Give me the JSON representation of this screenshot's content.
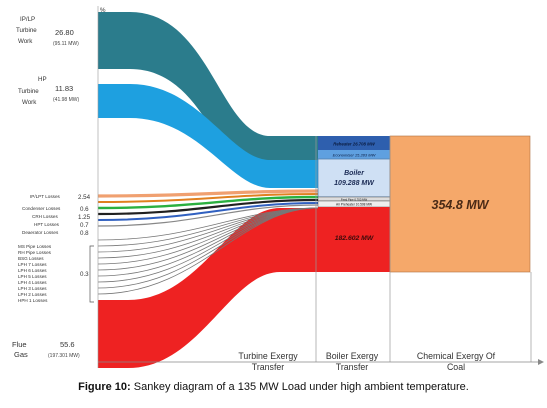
{
  "top_marker": "%",
  "sources": {
    "iplp": {
      "label": [
        "IP/LP",
        "Turbine",
        "Work"
      ],
      "value": "26.80",
      "sub": "(95.11 MW)"
    },
    "hp": {
      "label": [
        "HP",
        "Turbine",
        "Work"
      ],
      "value": "11.83",
      "sub": "(41.98 MW)"
    },
    "flue": {
      "label": [
        "Flue",
        "Gas"
      ],
      "value": "55.6",
      "sub": "(197.301 MW)"
    }
  },
  "losses": {
    "main": [
      {
        "label": "IP/LPT Losses",
        "value": "2.54"
      },
      {
        "label": "Condenser Losses",
        "value": "0.6"
      },
      {
        "label": "CRH Losses",
        "value": "1.25"
      },
      {
        "label": "HPT Losses",
        "value": "0.7"
      },
      {
        "label": "Deaerator Losses",
        "value": "0.8"
      }
    ],
    "bracket": [
      "MS Pipe Losses",
      "RH Pipe Losses",
      "BSG Losses",
      "LPH 7 Losses",
      "LPH 6 Losses",
      "LPH 5 Losses",
      "LPH 4 Losses",
      "LPH 3 Losses",
      "LPH 2 Losses",
      "HPH 1 Losses"
    ],
    "bracket_value": "0.3"
  },
  "boiler_bands": {
    "reheater": "Reheater  26.708  MW",
    "economiser": "Economiser 15.283 MW",
    "boiler": [
      "Boiler",
      "109.288 MW"
    ],
    "thin_a": "Feed Pipe 0.703 MW",
    "thin_b": "Air Preheater 10.508 MW",
    "bottom": "182.602 MW"
  },
  "coal": {
    "label": "354.8 MW"
  },
  "stages": [
    "Turbine Exergy",
    "Transfer",
    "Boiler Exergy",
    "Transfer",
    "Chemical Exergy Of",
    "Coal"
  ],
  "caption": {
    "label": "Figure 10:",
    "text": " Sankey diagram of a 135 MW Load under high ambient temperature."
  },
  "colors": {
    "iplp": "#2b7c8c",
    "hp": "#1ea0e0",
    "flue": "#ee2222",
    "coal": "#f5a86a",
    "reheater": "#2e5fae",
    "economiser": "#5fa0e0",
    "boiler": "#cfe0f4",
    "loss_lines": [
      "#f0a070",
      "#e08020",
      "#2bb040",
      "#202020",
      "#3060c0",
      "#888888"
    ]
  }
}
